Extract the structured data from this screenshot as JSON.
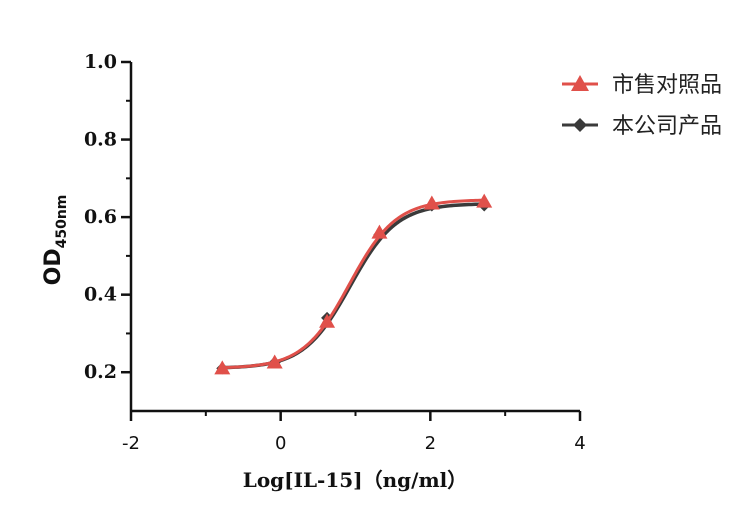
{
  "chart_data": {
    "type": "line",
    "xlabel": "Log[IL-15]（ng/ml）",
    "ylabel_main": "OD",
    "ylabel_sub": "450nm",
    "xlim": [
      -2,
      4
    ],
    "ylim": [
      0.1,
      1.0
    ],
    "x_ticks": [
      "-2",
      "0",
      "2",
      "4"
    ],
    "x_tick_values": [
      -2,
      0,
      2,
      4
    ],
    "y_ticks": [
      "0.2",
      "0.4",
      "0.6",
      "0.8",
      "1.0"
    ],
    "y_tick_values": [
      0.2,
      0.4,
      0.6,
      0.8,
      1.0
    ],
    "grid": false,
    "legend_position": "top-right",
    "series": [
      {
        "name": "市售对照品",
        "marker": "triangle",
        "color": "#e0504a",
        "x": [
          -0.78,
          -0.08,
          0.62,
          1.32,
          2.02,
          2.72
        ],
        "y": [
          0.21,
          0.225,
          0.33,
          0.56,
          0.635,
          0.64
        ],
        "fit": {
          "bottom": 0.21,
          "top": 0.645,
          "ec50_log": 0.92,
          "hill": 1.4
        }
      },
      {
        "name": "本公司产品",
        "marker": "diamond",
        "color": "#3a3a3a",
        "x": [
          -0.78,
          -0.08,
          0.62,
          1.32,
          2.02,
          2.72
        ],
        "y": [
          0.21,
          0.225,
          0.34,
          0.555,
          0.63,
          0.63
        ],
        "fit": {
          "bottom": 0.21,
          "top": 0.635,
          "ec50_log": 0.93,
          "hill": 1.4
        }
      }
    ]
  }
}
